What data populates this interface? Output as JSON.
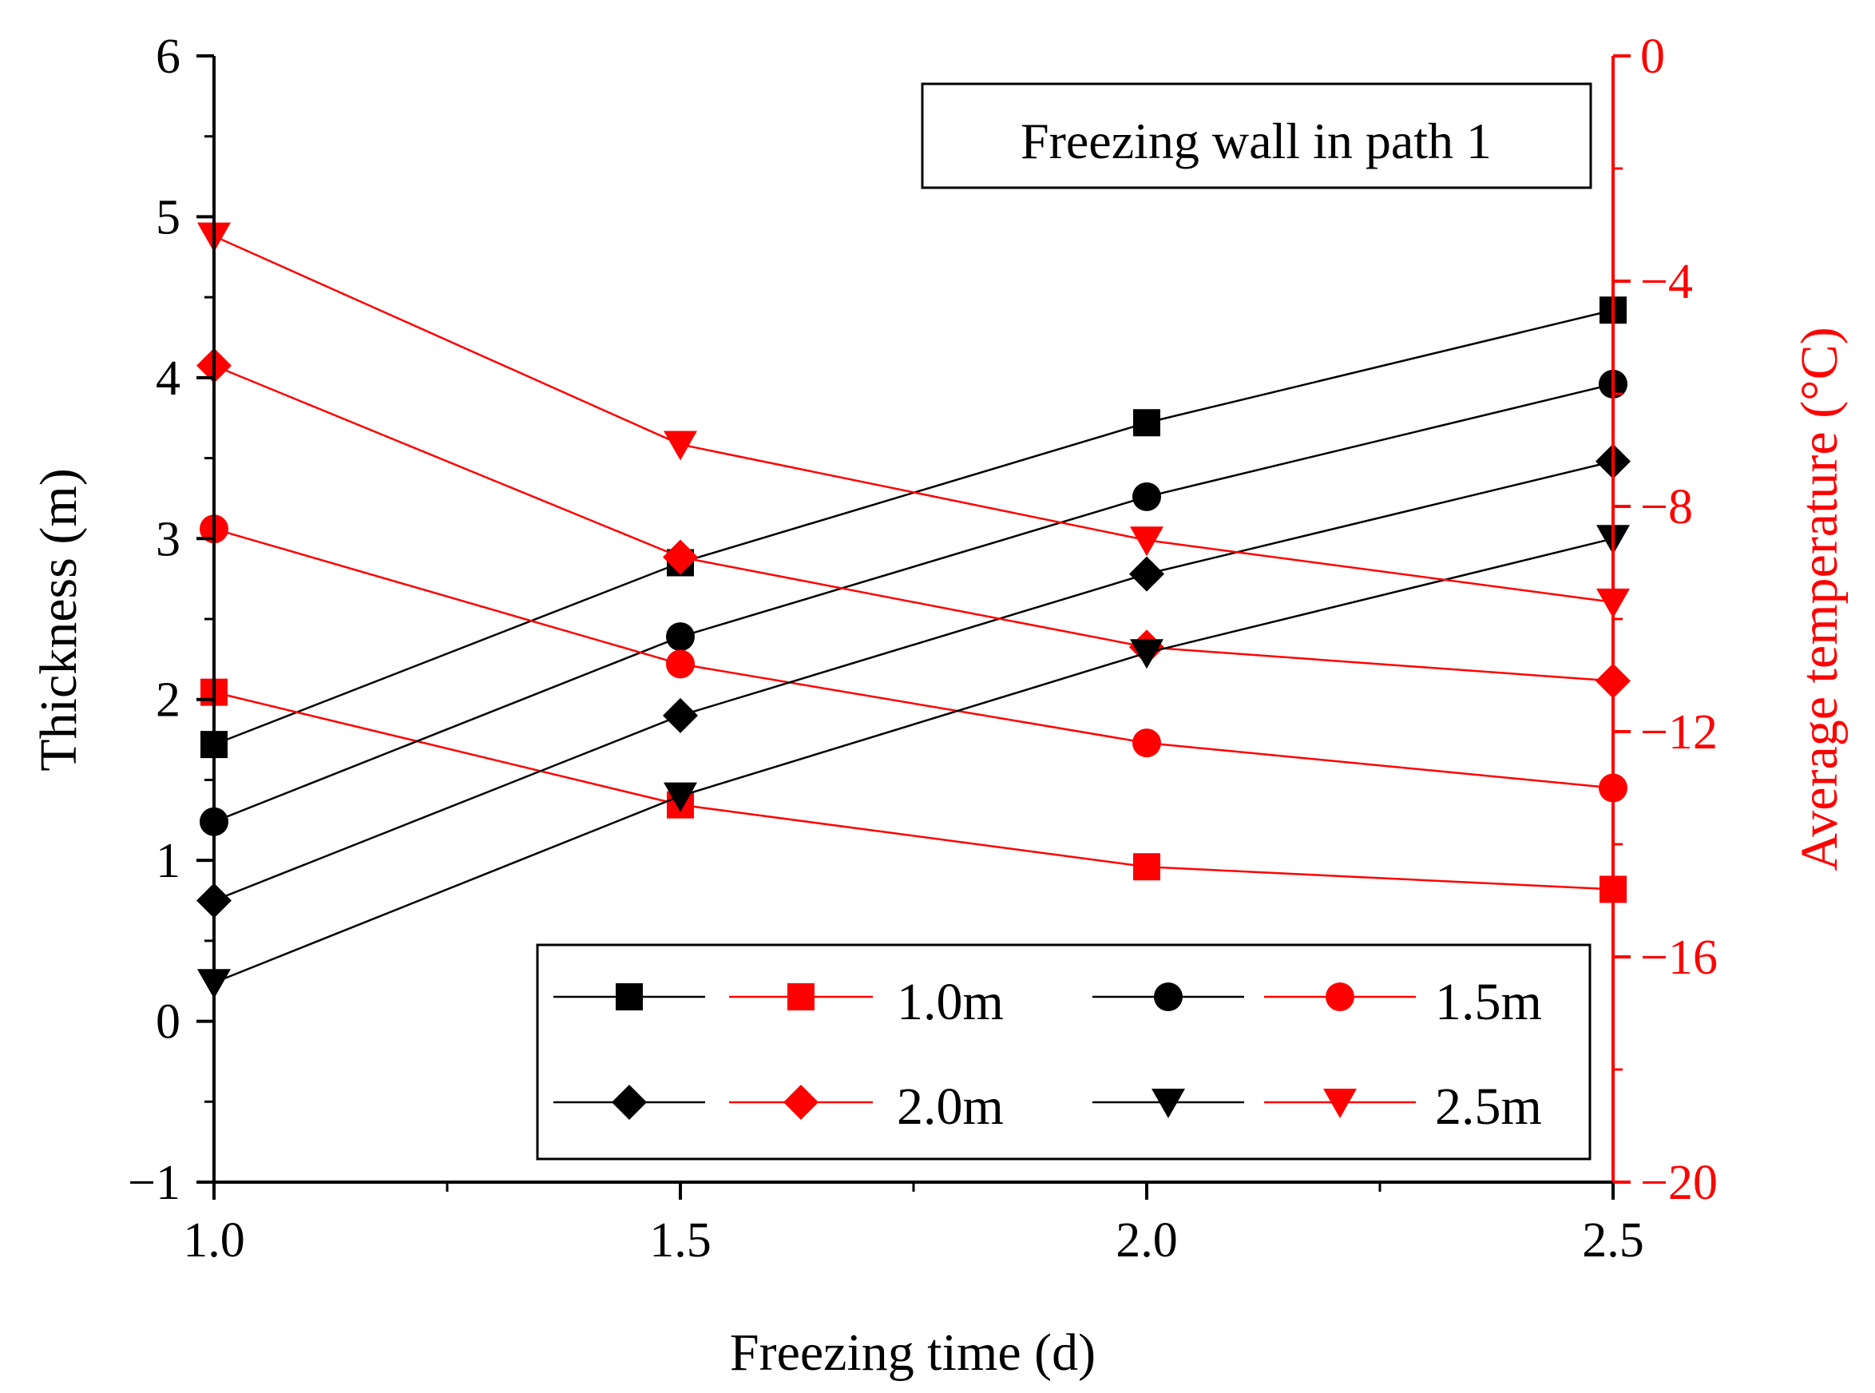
{
  "chart_data": {
    "type": "line",
    "annotation": "Freezing wall in path 1",
    "x_axis": {
      "label": "Freezing time (d)",
      "range": [
        1.0,
        2.5
      ],
      "ticks": [
        1.0,
        1.5,
        2.0,
        2.5
      ],
      "tick_labels": [
        "1.0",
        "1.5",
        "2.0",
        "2.5"
      ]
    },
    "y_left": {
      "label": "Thickness (m)",
      "range": [
        -1,
        6
      ],
      "ticks": [
        -1,
        0,
        1,
        2,
        3,
        4,
        5,
        6
      ],
      "tick_labels": [
        "−1",
        "0",
        "1",
        "2",
        "3",
        "4",
        "5",
        "6"
      ],
      "color": "#000000"
    },
    "y_right": {
      "label": "Average temperature (°C)",
      "range": [
        -20,
        0
      ],
      "ticks": [
        -20,
        -16,
        -12,
        -8,
        -4,
        0
      ],
      "tick_labels": [
        "−20",
        "−16",
        "−12",
        "−8",
        "−4",
        "0"
      ],
      "color": "#ff0000"
    },
    "x": [
      1.0,
      1.5,
      2.0,
      2.5
    ],
    "series": [
      {
        "name": "1.0m",
        "axis": "left",
        "color": "#000000",
        "marker": "square",
        "values": [
          1.72,
          2.85,
          3.72,
          4.42
        ]
      },
      {
        "name": "1.0m",
        "axis": "right",
        "color": "#ff0000",
        "marker": "square",
        "values": [
          -11.3,
          -13.3,
          -14.4,
          -14.8
        ]
      },
      {
        "name": "1.5m",
        "axis": "left",
        "color": "#000000",
        "marker": "circle",
        "values": [
          1.24,
          2.39,
          3.26,
          3.96
        ]
      },
      {
        "name": "1.5m",
        "axis": "right",
        "color": "#ff0000",
        "marker": "circle",
        "values": [
          -8.4,
          -10.8,
          -12.2,
          -13.0
        ]
      },
      {
        "name": "2.0m",
        "axis": "left",
        "color": "#000000",
        "marker": "diamond",
        "values": [
          0.75,
          1.9,
          2.78,
          3.48
        ]
      },
      {
        "name": "2.0m",
        "axis": "right",
        "color": "#ff0000",
        "marker": "diamond",
        "values": [
          -5.5,
          -8.9,
          -10.5,
          -11.1
        ]
      },
      {
        "name": "2.5m",
        "axis": "left",
        "color": "#000000",
        "marker": "triangle",
        "values": [
          0.24,
          1.4,
          2.29,
          3.0
        ]
      },
      {
        "name": "2.5m",
        "axis": "right",
        "color": "#ff0000",
        "marker": "triangle",
        "values": [
          -3.2,
          -6.9,
          -8.6,
          -9.7
        ]
      }
    ],
    "legend": {
      "position": "bottom-right",
      "entries": [
        "1.0m",
        "1.5m",
        "2.0m",
        "2.5m"
      ]
    }
  }
}
